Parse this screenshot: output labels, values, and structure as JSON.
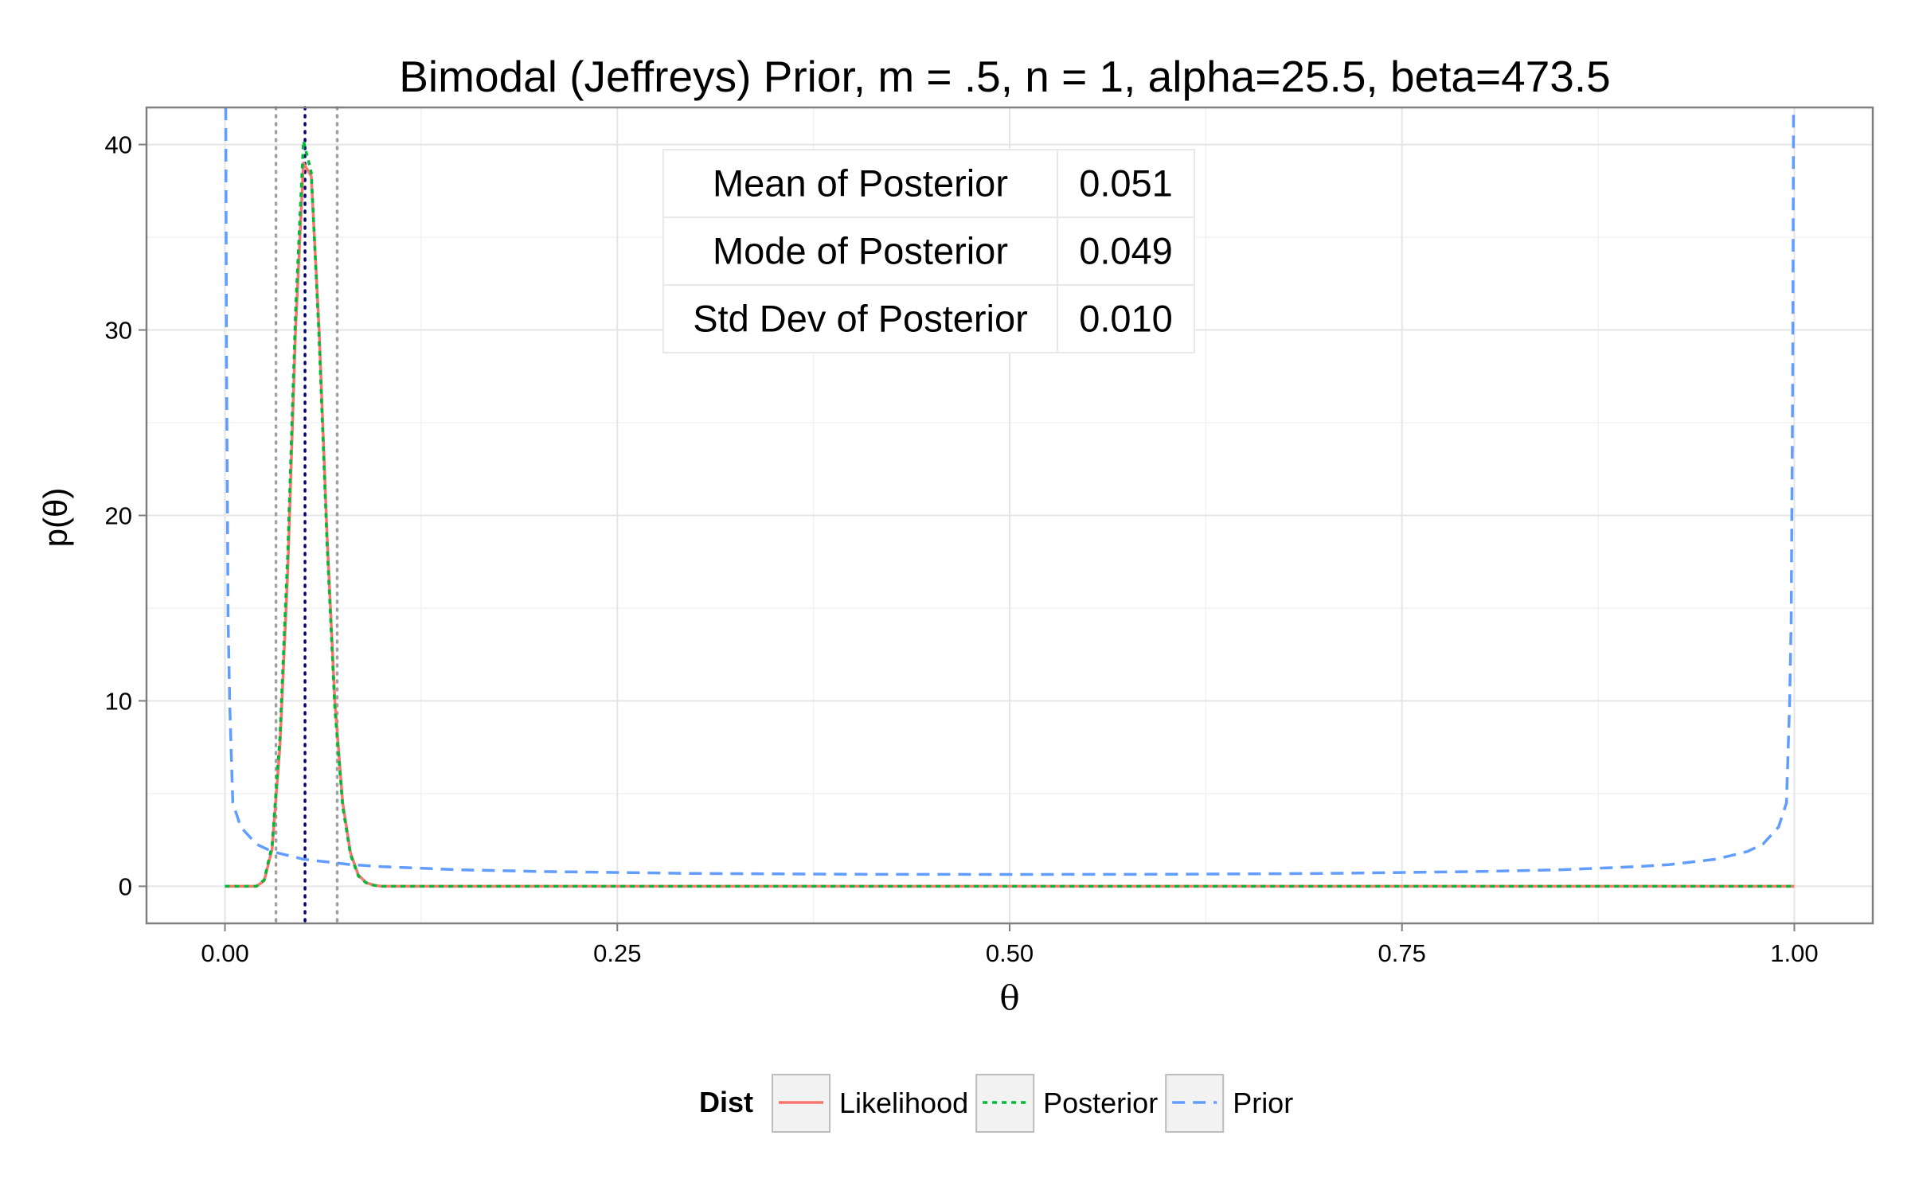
{
  "chart_data": {
    "type": "line",
    "title": "Bimodal (Jeffreys) Prior, m = .5, n = 1, alpha=25.5, beta=473.5",
    "xlabel": "θ",
    "ylabel": "p(θ)",
    "xlim": [
      -0.05,
      1.05
    ],
    "ylim": [
      -2,
      42
    ],
    "x_ticks": [
      0.0,
      0.25,
      0.5,
      0.75,
      1.0
    ],
    "x_tick_labels": [
      "0.00",
      "0.25",
      "0.50",
      "0.75",
      "1.00"
    ],
    "y_ticks": [
      0,
      10,
      20,
      30,
      40
    ],
    "y_tick_labels": [
      "0",
      "10",
      "20",
      "30",
      "40"
    ],
    "grid": true,
    "legend": {
      "title": "Dist",
      "position": "bottom",
      "entries": [
        {
          "label": "Likelihood",
          "color": "#F8766D",
          "dash": "solid"
        },
        {
          "label": "Posterior",
          "color": "#00BA38",
          "dash": "dotted"
        },
        {
          "label": "Prior",
          "color": "#619CFF",
          "dash": "dashed"
        }
      ]
    },
    "series": [
      {
        "name": "Likelihood",
        "color": "#F8766D",
        "x": [
          0.0,
          0.02,
          0.025,
          0.03,
          0.035,
          0.04,
          0.045,
          0.05,
          0.055,
          0.06,
          0.065,
          0.07,
          0.075,
          0.08,
          0.085,
          0.09,
          0.095,
          0.1,
          0.2,
          0.5,
          1.0
        ],
        "y": [
          0,
          0,
          0.3,
          2.0,
          7.5,
          17.0,
          30.0,
          39.0,
          38.3,
          30.0,
          19.0,
          10.0,
          4.5,
          1.8,
          0.6,
          0.2,
          0.05,
          0,
          0,
          0,
          0
        ]
      },
      {
        "name": "Posterior",
        "color": "#00BA38",
        "x": [
          0.0,
          0.02,
          0.025,
          0.03,
          0.035,
          0.04,
          0.045,
          0.05,
          0.055,
          0.06,
          0.065,
          0.07,
          0.075,
          0.08,
          0.085,
          0.09,
          0.095,
          0.1,
          0.2,
          0.5,
          1.0
        ],
        "y": [
          0,
          0,
          0.35,
          2.2,
          8.0,
          18.0,
          31.0,
          40.2,
          38.5,
          29.5,
          18.5,
          9.6,
          4.3,
          1.7,
          0.55,
          0.18,
          0.05,
          0,
          0,
          0,
          0
        ]
      },
      {
        "name": "Prior",
        "color": "#619CFF",
        "x": [
          0.0005,
          0.001,
          0.002,
          0.003,
          0.005,
          0.01,
          0.02,
          0.03,
          0.05,
          0.08,
          0.1,
          0.15,
          0.2,
          0.3,
          0.4,
          0.5,
          0.6,
          0.7,
          0.8,
          0.85,
          0.9,
          0.92,
          0.95,
          0.97,
          0.98,
          0.99,
          0.995,
          0.997,
          0.998,
          0.999,
          0.9995
        ],
        "y": [
          42,
          28,
          14.3,
          9.8,
          4.5,
          3.2,
          2.27,
          1.87,
          1.46,
          1.17,
          1.06,
          0.89,
          0.8,
          0.69,
          0.65,
          0.64,
          0.65,
          0.69,
          0.8,
          0.89,
          1.06,
          1.17,
          1.46,
          1.87,
          2.27,
          3.2,
          4.5,
          9.8,
          14.3,
          28,
          42
        ]
      }
    ],
    "vertical_lines": [
      {
        "x": 0.0325,
        "color": "#A0A0A0"
      },
      {
        "x": 0.0715,
        "color": "#A0A0A0"
      },
      {
        "x": 0.051,
        "color": "#000080"
      }
    ],
    "stats_table": [
      {
        "label": "Mean of Posterior",
        "value": "0.051"
      },
      {
        "label": "Mode of Posterior",
        "value": "0.049"
      },
      {
        "label": "Std Dev of Posterior",
        "value": "0.010"
      }
    ]
  }
}
